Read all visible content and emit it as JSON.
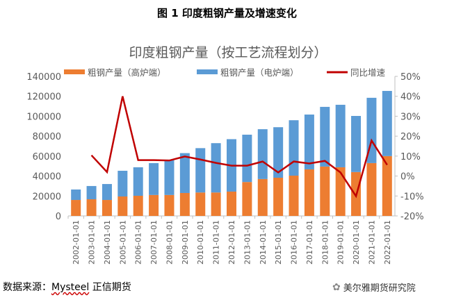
{
  "figure_title": "图 1 印度粗钢产量及增速变化",
  "source_label": "数据来源：",
  "source_brand": "Mysteel",
  "source_rest": " 正信期货",
  "watermark": "美尔雅期货研究院",
  "colors": {
    "bf": "#ED7D31",
    "eaf": "#5B9BD5",
    "growth": "#C00000"
  },
  "chart_data": {
    "type": "bar",
    "title": "印度粗钢产量（按工艺流程划分）",
    "categories": [
      "2002-01-01",
      "2003-01-01",
      "2004-01-01",
      "2005-01-01",
      "2006-01-01",
      "2007-01-01",
      "2008-01-01",
      "2009-01-01",
      "2010-01-01",
      "2011-01-01",
      "2012-01-01",
      "2013-01-01",
      "2014-01-01",
      "2015-01-01",
      "2016-01-01",
      "2017-01-01",
      "2018-01-01",
      "2019-01-01",
      "2020-01-01",
      "2021-01-01",
      "2022-01-01"
    ],
    "series": [
      {
        "name": "粗钢产量（高炉端）",
        "type": "stacked-bar",
        "axis": "left",
        "values": [
          16000,
          16700,
          16000,
          19500,
          20200,
          21000,
          21000,
          23000,
          23500,
          23500,
          24400,
          34000,
          37000,
          38300,
          40400,
          46700,
          49500,
          48800,
          44000,
          53000,
          60000
        ]
      },
      {
        "name": "粗钢产量（电炉端）",
        "type": "stacked-bar",
        "axis": "left",
        "values": [
          10500,
          13300,
          16000,
          25800,
          28600,
          32000,
          35000,
          40000,
          44500,
          49500,
          52600,
          47500,
          50000,
          50700,
          55600,
          55000,
          59900,
          62700,
          56300,
          65500,
          65400
        ]
      },
      {
        "name": "同比增速",
        "type": "line",
        "axis": "right",
        "unit": "%",
        "values": [
          null,
          10.4,
          2.0,
          40.0,
          8.0,
          8.0,
          7.8,
          9.8,
          8.3,
          6.6,
          5.2,
          5.2,
          7.3,
          1.8,
          7.3,
          6.3,
          7.6,
          1.8,
          -10.1,
          17.8,
          5.6
        ]
      }
    ],
    "y_left": {
      "min": 0,
      "max": 140000,
      "ticks": [
        "0",
        "20000",
        "40000",
        "60000",
        "80000",
        "100000",
        "120000",
        "140000"
      ]
    },
    "y_right": {
      "min": -20,
      "max": 50,
      "ticks": [
        "-20%",
        "-10%",
        "0%",
        "10%",
        "20%",
        "30%",
        "40%",
        "50%"
      ]
    },
    "legend": "top",
    "grid": false
  }
}
